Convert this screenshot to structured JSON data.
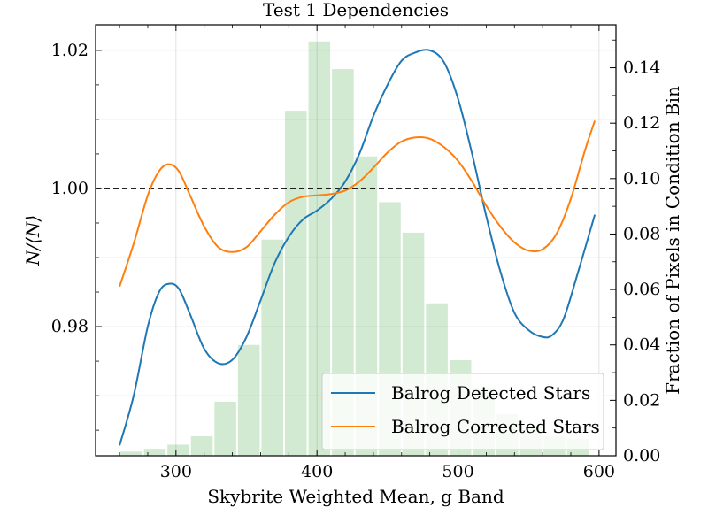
{
  "chart_data": {
    "type": "line",
    "title": "Test 1 Dependencies",
    "xlabel": "Skybrite Weighted Mean, g Band",
    "ylabel_left": "N/⟨N⟩",
    "ylabel_right": "Fraction of Pixels in Condition Bin",
    "xlim": [
      243,
      612
    ],
    "ylim_left": [
      0.9613,
      1.0237
    ],
    "ylim_right": [
      0,
      0.1555
    ],
    "x_ticks": [
      300,
      400,
      500,
      600
    ],
    "x_tick_labels": [
      "300",
      "400",
      "500",
      "600"
    ],
    "y_left_ticks": [
      0.98,
      1.0,
      1.02
    ],
    "y_left_tick_labels": [
      "0.98",
      "1.00",
      "1.02"
    ],
    "y_right_ticks": [
      0.0,
      0.02,
      0.04,
      0.06,
      0.08,
      0.1,
      0.12,
      0.14
    ],
    "y_right_tick_labels": [
      "0.00",
      "0.02",
      "0.04",
      "0.06",
      "0.08",
      "0.10",
      "0.12",
      "0.14"
    ],
    "grid": true,
    "reference_line": {
      "y": 1.0,
      "style": "dashed",
      "color": "#000000"
    },
    "histogram": {
      "axis": "right",
      "color": "#2ca02c",
      "alpha": 0.22,
      "bin_edges": [
        260,
        276.67,
        293.33,
        310,
        326.67,
        343.33,
        360,
        376.67,
        393.33,
        410,
        426.67,
        443.33,
        460,
        476.67,
        493.33,
        510,
        526.67,
        543.33,
        560,
        576.67,
        593.33
      ],
      "values": [
        0.0015,
        0.0025,
        0.004,
        0.007,
        0.0195,
        0.04,
        0.078,
        0.1245,
        0.1495,
        0.1395,
        0.108,
        0.0915,
        0.0805,
        0.055,
        0.0345,
        0.0245,
        0.015,
        0.011,
        0.007,
        0.006
      ]
    },
    "series": [
      {
        "name": "Balrog Detected Stars",
        "color": "#1f77b4",
        "x": [
          260,
          270,
          280,
          288,
          295,
          302,
          310,
          320,
          330,
          340,
          350,
          360,
          370,
          380,
          390,
          400,
          410,
          420,
          430,
          440,
          450,
          460,
          470,
          480,
          490,
          500,
          510,
          520,
          530,
          540,
          550,
          560,
          567,
          575,
          585,
          597
        ],
        "y": [
          0.9628,
          0.97,
          0.98,
          0.985,
          0.9862,
          0.9855,
          0.9818,
          0.9768,
          0.9747,
          0.9752,
          0.9785,
          0.9838,
          0.9892,
          0.993,
          0.9955,
          0.9968,
          0.9985,
          1.001,
          1.005,
          1.0105,
          1.015,
          1.0185,
          1.0197,
          1.02,
          1.0183,
          1.013,
          1.005,
          0.996,
          0.988,
          0.982,
          0.9795,
          0.9785,
          0.9788,
          0.9812,
          0.9878,
          0.9962
        ]
      },
      {
        "name": "Balrog Corrected Stars",
        "color": "#ff7f0e",
        "x": [
          260,
          270,
          280,
          288,
          295,
          302,
          310,
          320,
          330,
          340,
          350,
          360,
          370,
          380,
          390,
          400,
          410,
          420,
          430,
          440,
          450,
          460,
          470,
          480,
          490,
          500,
          510,
          520,
          530,
          540,
          550,
          560,
          570,
          580,
          590,
          597
        ],
        "y": [
          0.9858,
          0.992,
          0.999,
          1.0025,
          1.0035,
          1.0025,
          0.999,
          0.9945,
          0.9915,
          0.9908,
          0.9915,
          0.9938,
          0.9962,
          0.998,
          0.9988,
          0.999,
          0.9992,
          0.9997,
          1.001,
          1.003,
          1.0052,
          1.0068,
          1.0074,
          1.0072,
          1.006,
          1.004,
          1.001,
          0.9975,
          0.9945,
          0.9922,
          0.991,
          0.9912,
          0.9935,
          0.9985,
          1.0055,
          1.0098
        ]
      }
    ],
    "legend": {
      "position": "lower-right"
    }
  }
}
